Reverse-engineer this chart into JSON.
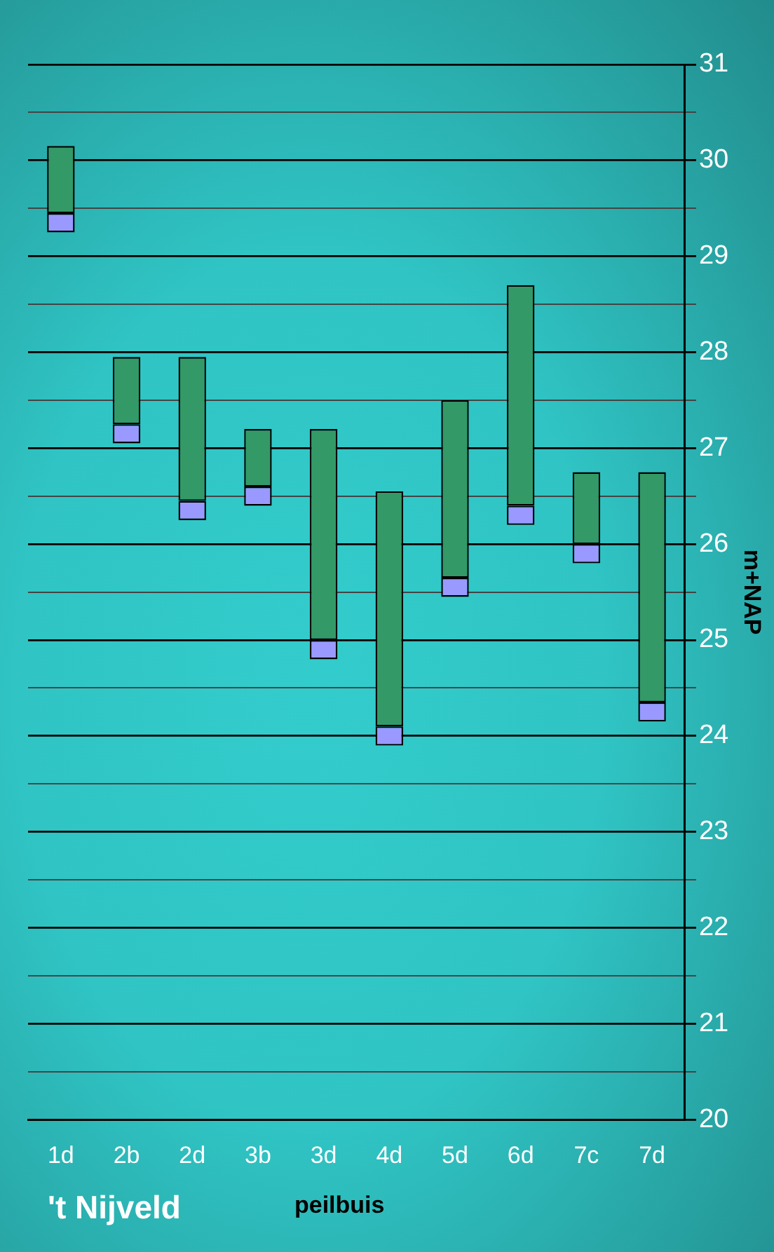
{
  "chart_data": {
    "type": "bar",
    "title": "'t Nijveld",
    "xlabel": "peilbuis",
    "ylabel": "m+NAP",
    "categories": [
      "1d",
      "2b",
      "2d",
      "3b",
      "3d",
      "4d",
      "5d",
      "6d",
      "7c",
      "7d"
    ],
    "series": [
      {
        "color": "#9999ff",
        "base": [
          29.25,
          27.05,
          26.25,
          26.4,
          24.8,
          23.9,
          25.45,
          26.2,
          25.8,
          24.15
        ],
        "values": [
          0.2,
          0.2,
          0.2,
          0.2,
          0.2,
          0.2,
          0.2,
          0.2,
          0.2,
          0.2
        ]
      },
      {
        "color": "#339966",
        "base": [
          29.45,
          27.25,
          26.45,
          26.6,
          25.0,
          24.1,
          25.65,
          26.4,
          26.0,
          24.35
        ],
        "values": [
          0.7,
          0.7,
          1.5,
          0.6,
          2.2,
          2.45,
          1.85,
          2.3,
          0.75,
          2.4
        ]
      }
    ],
    "ylim": [
      20,
      31
    ],
    "yticks": [
      20,
      {
        "value": 20.5,
        "label": null
      },
      21,
      {
        "value": 21.5,
        "label": null
      },
      22,
      {
        "value": 22.5,
        "label": null
      },
      23,
      {
        "value": 23.5,
        "label": null
      },
      24,
      {
        "value": 24.5,
        "label": null
      },
      25,
      {
        "value": 25.5,
        "label": null
      },
      26,
      {
        "value": 26.5,
        "label": null
      },
      27,
      {
        "value": 27.5,
        "label": null
      },
      28,
      {
        "value": 28.5,
        "label": null
      },
      29,
      {
        "value": 29.5,
        "label": null
      },
      30,
      {
        "value": 30.5,
        "label": null
      },
      31
    ],
    "grid": "y",
    "legend": false
  }
}
